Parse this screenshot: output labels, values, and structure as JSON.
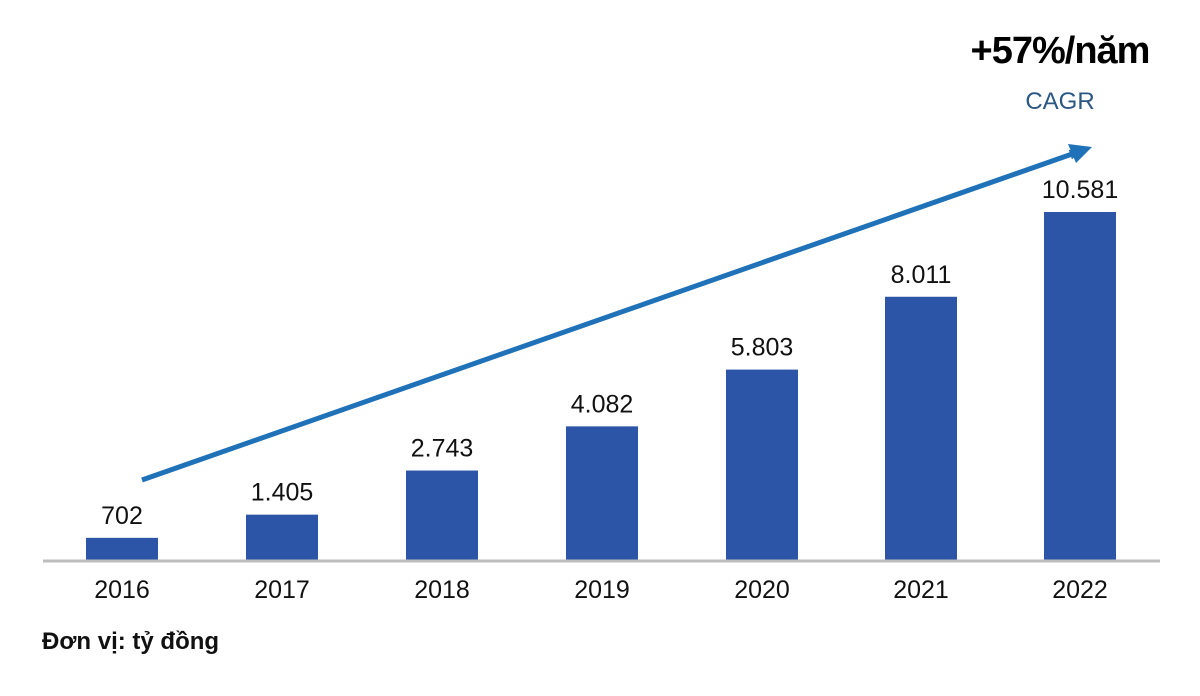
{
  "chart_data": {
    "type": "bar",
    "categories": [
      "2016",
      "2017",
      "2018",
      "2019",
      "2020",
      "2021",
      "2022"
    ],
    "values": [
      702,
      1405,
      2743,
      4082,
      5803,
      8011,
      10581
    ],
    "data_labels": [
      "702",
      "1.405",
      "2.743",
      "4.082",
      "5.803",
      "8.011",
      "10.581"
    ],
    "title": "",
    "xlabel": "",
    "ylabel": "",
    "ylim": [
      0,
      11000
    ],
    "grid": false,
    "annotation": {
      "headline": "+57%/năm",
      "label": "CAGR",
      "arrow": "trend arrow rising from 2016 to 2022"
    },
    "unit_note": "Đơn vị: tỷ đồng"
  },
  "colors": {
    "bar": "#2c55a8",
    "arrow": "#1f72b8",
    "axis": "#bdbdbd",
    "cagr_label": "#2b5783"
  }
}
